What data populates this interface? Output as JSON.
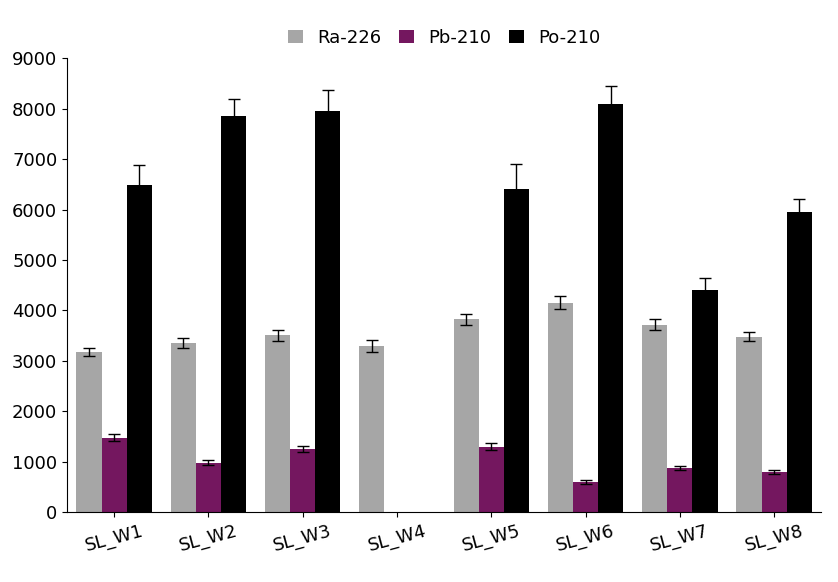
{
  "chart_data": {
    "type": "bar",
    "categories": [
      "SL_W1",
      "SL_W2",
      "SL_W3",
      "SL_W4",
      "SL_W5",
      "SL_W6",
      "SL_W7",
      "SL_W8"
    ],
    "series": [
      {
        "name": "Ra-226",
        "color": "#a6a6a6",
        "values": [
          3180,
          3350,
          3510,
          3290,
          3820,
          4150,
          3720,
          3480
        ],
        "errors": [
          80,
          100,
          110,
          120,
          110,
          130,
          100,
          90
        ]
      },
      {
        "name": "Pb-210",
        "color": "#74175f",
        "values": [
          1480,
          980,
          1250,
          null,
          1300,
          600,
          880,
          800
        ],
        "errors": [
          70,
          50,
          60,
          null,
          70,
          40,
          40,
          40
        ]
      },
      {
        "name": "Po-210",
        "color": "#000000",
        "values": [
          6480,
          7850,
          7960,
          null,
          6400,
          8100,
          4400,
          5960
        ],
        "errors": [
          400,
          350,
          400,
          null,
          500,
          350,
          250,
          250
        ]
      }
    ],
    "ylim": [
      0,
      9000
    ],
    "yticks": [
      0,
      1000,
      2000,
      3000,
      4000,
      5000,
      6000,
      7000,
      8000,
      9000
    ],
    "grid": false,
    "legend": "upper center"
  }
}
